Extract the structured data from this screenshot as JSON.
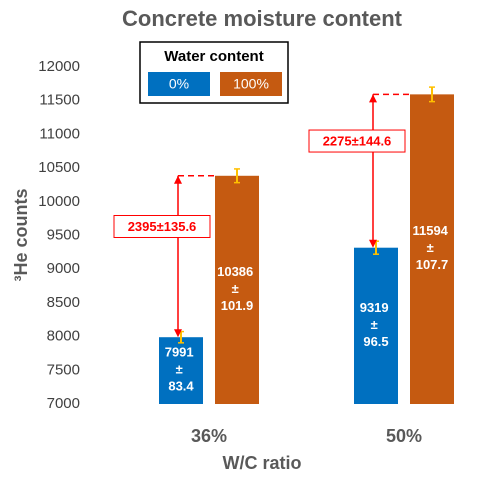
{
  "chart_data": {
    "type": "bar",
    "title": "Concrete moisture content",
    "categories": [
      "36%",
      "50%"
    ],
    "series": [
      {
        "name": "0%",
        "color": "#0070c0",
        "values": [
          7991,
          9319
        ],
        "errors": [
          83.4,
          96.5
        ],
        "value_labels": [
          "7991 ± 83.4",
          "9319 ± 96.5"
        ]
      },
      {
        "name": "100%",
        "color": "#c55a11",
        "values": [
          10386,
          11594
        ],
        "errors": [
          101.9,
          107.7
        ],
        "value_labels": [
          "10386 ± 101.9",
          "11594 ± 107.7"
        ]
      }
    ],
    "legend_title": "Water content",
    "annotations": [
      "2395±135.6",
      "2275±144.6"
    ],
    "xlabel": "W/C ratio",
    "ylabel": "³He counts",
    "ylim": [
      7000,
      12000
    ],
    "yticks": [
      7000,
      7500,
      8000,
      8500,
      9000,
      9500,
      10000,
      10500,
      11000,
      11500,
      12000
    ],
    "grid": false,
    "error_color": "#ffc000",
    "annotation_color": "#ff0000"
  }
}
